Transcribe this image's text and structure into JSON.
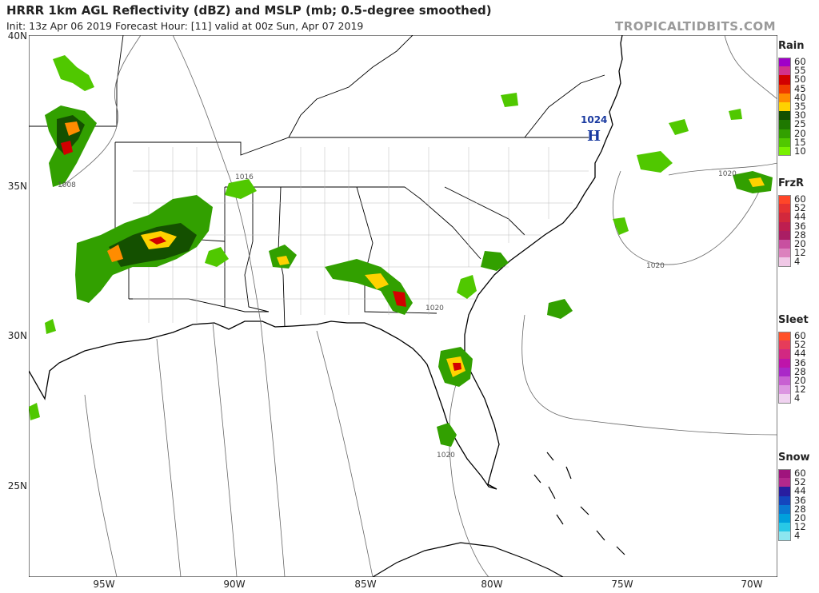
{
  "header": {
    "title": "HRRR 1km AGL Reflectivity (dBZ) and MSLP (mb; 0.5-degree smoothed)",
    "subtitle": "Init: 13z Apr 06 2019   Forecast Hour: [11]   valid at 00z Sun, Apr 07 2019",
    "credit": "TROPICALTIDBITS.COM"
  },
  "axes": {
    "lat_labels": [
      "40N",
      "35N",
      "30N",
      "25N"
    ],
    "lon_labels": [
      "95W",
      "90W",
      "85W",
      "80W",
      "75W",
      "70W"
    ]
  },
  "pressure": {
    "high_center_value": "1024",
    "high_center_letter": "H",
    "isobar_labels": [
      "1008",
      "1016",
      "1020",
      "1020",
      "1020",
      "1020"
    ]
  },
  "legend": [
    {
      "title": "Rain",
      "labels": [
        "60",
        "55",
        "50",
        "45",
        "40",
        "35",
        "30",
        "25",
        "20",
        "15",
        "10"
      ],
      "colors": [
        "#a000c8",
        "#d2328c",
        "#d20000",
        "#f03c00",
        "#ff8c00",
        "#ffd200",
        "#145000",
        "#1e7800",
        "#32a000",
        "#50c800",
        "#78f000"
      ]
    },
    {
      "title": "FrzR",
      "labels": [
        "60",
        "52",
        "44",
        "36",
        "28",
        "20",
        "12",
        "4"
      ],
      "colors": [
        "#ff4628",
        "#e63232",
        "#d2283c",
        "#be1e50",
        "#aa1e64",
        "#c850a0",
        "#dc82be",
        "#f0c8e6"
      ]
    },
    {
      "title": "Sleet",
      "labels": [
        "60",
        "52",
        "44",
        "36",
        "28",
        "20",
        "12",
        "4"
      ],
      "colors": [
        "#ff5028",
        "#e63c5a",
        "#d22882",
        "#be14aa",
        "#aa28c8",
        "#c860d2",
        "#dc96e1",
        "#f0d2f0"
      ]
    },
    {
      "title": "Snow",
      "labels": [
        "60",
        "52",
        "44",
        "36",
        "28",
        "20",
        "12",
        "4"
      ],
      "colors": [
        "#a0147d",
        "#b4288c",
        "#281ea0",
        "#1446be",
        "#0a78d2",
        "#00a0dc",
        "#28c8e6",
        "#8ce6f0"
      ]
    }
  ]
}
